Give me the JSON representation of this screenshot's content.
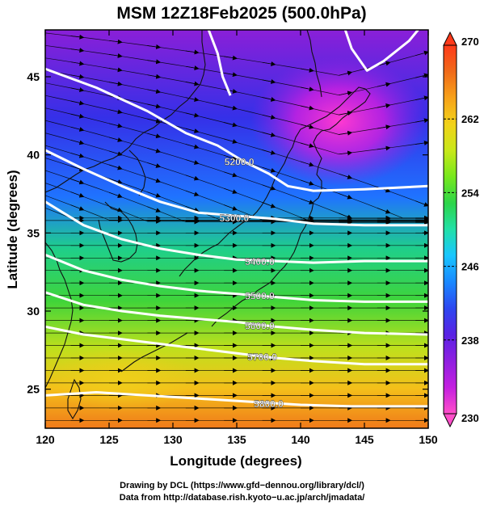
{
  "chart_data": {
    "type": "heatmap",
    "title": "MSM 12Z18Feb2025 (500.0hPa)",
    "xlabel": "Longitude (degrees)",
    "ylabel": "Latitude  (degrees)",
    "xlim": [
      120,
      150
    ],
    "ylim": [
      22.5,
      48
    ],
    "xticks": [
      120,
      125,
      130,
      135,
      140,
      145,
      150
    ],
    "xtick_labels": [
      "120",
      "125",
      "130",
      "135",
      "140",
      "145",
      "150"
    ],
    "yticks": [
      25,
      30,
      35,
      40,
      45
    ],
    "ytick_labels": [
      "25",
      "30",
      "35",
      "40",
      "45"
    ],
    "colorbar": {
      "min": 230,
      "max": 270,
      "ticks": [
        230,
        238,
        246,
        254,
        262,
        270
      ],
      "tick_labels": [
        "230",
        "238",
        "246",
        "254",
        "262",
        "270"
      ],
      "colors": [
        "#ff4fc9",
        "#c41fe0",
        "#8f1fe0",
        "#5a22e4",
        "#2d47f0",
        "#1a88ff",
        "#19c6ff",
        "#22e0a8",
        "#2cd54a",
        "#77e81d",
        "#c8e81a",
        "#f2d21a",
        "#f7a21a",
        "#f06a1a",
        "#ff3a1a"
      ]
    },
    "contours": [
      {
        "label": "5200.0",
        "points": [
          [
            120,
            45.5
          ],
          [
            124,
            44.3
          ],
          [
            128,
            42.8
          ],
          [
            131,
            41.4
          ],
          [
            133.5,
            40.6
          ],
          [
            135.5,
            39.6
          ],
          [
            137.5,
            38.8
          ],
          [
            139,
            38.0
          ],
          [
            141,
            37.7
          ],
          [
            145,
            37.8
          ],
          [
            150,
            38.0
          ]
        ],
        "label_at": [
          135.2,
          39.6
        ]
      },
      {
        "label": "5300.0",
        "points": [
          [
            120,
            40.3
          ],
          [
            123,
            39.1
          ],
          [
            126,
            38.0
          ],
          [
            129,
            37.0
          ],
          [
            132,
            36.3
          ],
          [
            135,
            36.1
          ],
          [
            138,
            35.9
          ],
          [
            141,
            35.6
          ],
          [
            145,
            35.5
          ],
          [
            150,
            35.5
          ]
        ],
        "label_at": [
          134.8,
          36.0
        ]
      },
      {
        "label": "5400.0",
        "points": [
          [
            120,
            37.0
          ],
          [
            123,
            35.5
          ],
          [
            126,
            34.6
          ],
          [
            129,
            34.0
          ],
          [
            132,
            33.6
          ],
          [
            135,
            33.3
          ],
          [
            138,
            33.2
          ],
          [
            141,
            33.1
          ],
          [
            145,
            33.2
          ],
          [
            150,
            33.2
          ]
        ],
        "label_at": [
          136.8,
          33.2
        ]
      },
      {
        "label": "5500.0",
        "points": [
          [
            120,
            33.6
          ],
          [
            123,
            32.6
          ],
          [
            126,
            32.0
          ],
          [
            129,
            31.6
          ],
          [
            132,
            31.3
          ],
          [
            135,
            31.1
          ],
          [
            138,
            30.9
          ],
          [
            141,
            30.7
          ],
          [
            145,
            30.6
          ],
          [
            150,
            30.6
          ]
        ],
        "label_at": [
          136.8,
          31.0
        ]
      },
      {
        "label": "5600.0",
        "points": [
          [
            120,
            31.2
          ],
          [
            123,
            30.4
          ],
          [
            126,
            30.0
          ],
          [
            129,
            29.7
          ],
          [
            132,
            29.5
          ],
          [
            135,
            29.3
          ],
          [
            138,
            29.0
          ],
          [
            141,
            28.8
          ],
          [
            145,
            28.6
          ],
          [
            150,
            28.5
          ]
        ],
        "label_at": [
          136.8,
          29.1
        ]
      },
      {
        "label": "5700.0",
        "points": [
          [
            120,
            29.0
          ],
          [
            123,
            28.5
          ],
          [
            126,
            28.2
          ],
          [
            129,
            27.9
          ],
          [
            132,
            27.6
          ],
          [
            135,
            27.3
          ],
          [
            138,
            27.0
          ],
          [
            141,
            26.8
          ],
          [
            145,
            26.6
          ],
          [
            150,
            26.6
          ]
        ],
        "label_at": [
          137.0,
          27.1
        ]
      },
      {
        "label": "5800.0",
        "points": [
          [
            120,
            24.6
          ],
          [
            124,
            24.8
          ],
          [
            128,
            24.6
          ],
          [
            132,
            24.4
          ],
          [
            136,
            24.2
          ],
          [
            140,
            24.0
          ],
          [
            144,
            23.9
          ],
          [
            150,
            23.9
          ]
        ],
        "label_at": [
          137.5,
          24.1
        ]
      },
      {
        "label": "",
        "points": [
          [
            132.8,
            48.0
          ],
          [
            133.5,
            46.5
          ],
          [
            133.9,
            45.0
          ],
          [
            134.5,
            43.8
          ]
        ],
        "label_at": null
      },
      {
        "label": "",
        "points": [
          [
            143.5,
            48.0
          ],
          [
            144,
            46.8
          ],
          [
            145.2,
            45.4
          ],
          [
            146.5,
            46.0
          ],
          [
            148.5,
            47.3
          ],
          [
            149.2,
            48.0
          ]
        ],
        "label_at": null
      }
    ]
  },
  "footer": {
    "line1": "Drawing by DCL (https://www.gfd−dennou.org/library/dcl/)",
    "line2": "Data from http://database.rish.kyoto−u.ac.jp/arch/jmadata/"
  }
}
